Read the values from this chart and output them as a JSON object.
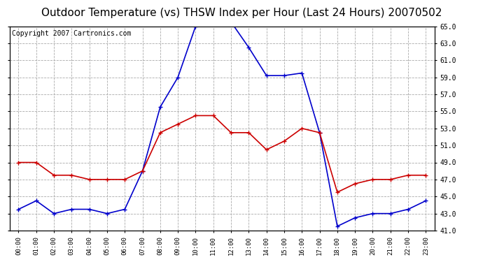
{
  "title": "Outdoor Temperature (vs) THSW Index per Hour (Last 24 Hours) 20070502",
  "copyright": "Copyright 2007 Cartronics.com",
  "hours": [
    "00:00",
    "01:00",
    "02:00",
    "03:00",
    "04:00",
    "05:00",
    "06:00",
    "07:00",
    "08:00",
    "09:00",
    "10:00",
    "11:00",
    "12:00",
    "13:00",
    "14:00",
    "15:00",
    "16:00",
    "17:00",
    "18:00",
    "19:00",
    "20:00",
    "21:00",
    "22:00",
    "23:00"
  ],
  "temp_blue": [
    43.5,
    44.5,
    43.0,
    43.5,
    43.5,
    43.0,
    43.5,
    48.0,
    55.5,
    59.0,
    65.0,
    65.5,
    65.5,
    62.5,
    59.2,
    59.2,
    59.5,
    52.5,
    41.5,
    42.5,
    43.0,
    43.0,
    43.5,
    44.5
  ],
  "temp_red": [
    49.0,
    49.0,
    47.5,
    47.5,
    47.0,
    47.0,
    47.0,
    48.0,
    52.5,
    53.5,
    54.5,
    54.5,
    52.5,
    52.5,
    50.5,
    51.5,
    53.0,
    52.5,
    45.5,
    46.5,
    47.0,
    47.0,
    47.5,
    47.5
  ],
  "blue_color": "#0000cc",
  "red_color": "#cc0000",
  "bg_color": "#ffffff",
  "grid_color": "#aaaaaa",
  "ylim": [
    41.0,
    65.0
  ],
  "yticks": [
    41.0,
    43.0,
    45.0,
    47.0,
    49.0,
    51.0,
    53.0,
    55.0,
    57.0,
    59.0,
    61.0,
    63.0,
    65.0
  ],
  "title_fontsize": 11,
  "copyright_fontsize": 7,
  "marker": "+",
  "markersize": 5,
  "linewidth": 1.2
}
